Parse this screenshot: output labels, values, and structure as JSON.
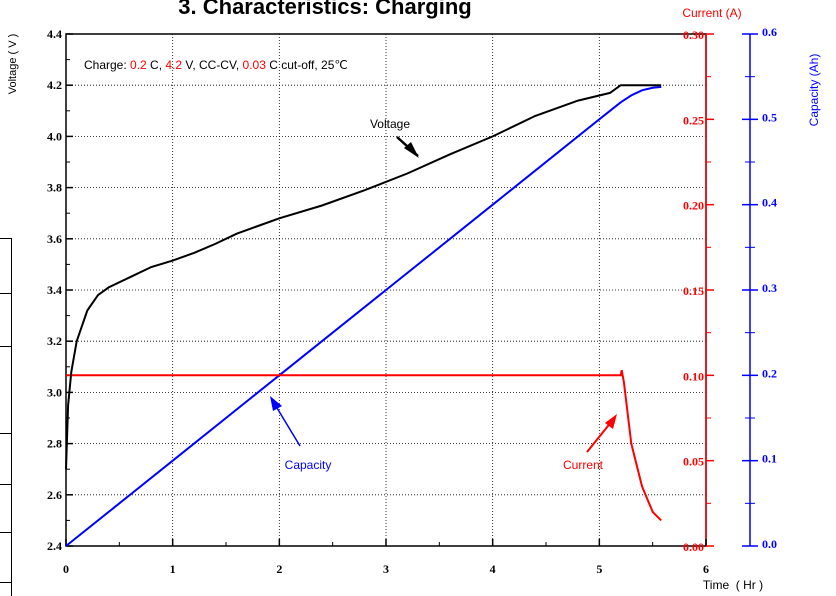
{
  "chart_data": {
    "type": "line",
    "title": "3. Characteristics: Charging",
    "annotation": {
      "prefix": "Charge: ",
      "rate": "0.2",
      "rate_unit": " C, ",
      "voltage": "4.2",
      "voltage_unit": " V, CC-CV, ",
      "cutoff": "0.03",
      "cutoff_unit": " C cut-off, 25℃"
    },
    "xlabel": "Time  ( Hr )",
    "y_left_label": "Voltage ( V )",
    "y_right_current_label": "Current (A)",
    "y_right_capacity_label": "Capacity (Ah)",
    "x_range": [
      0,
      6
    ],
    "y_left_range": [
      2.4,
      4.4
    ],
    "y_current_range": [
      0.0,
      0.3
    ],
    "y_capacity_range": [
      0.0,
      0.6
    ],
    "x_ticks": [
      "0",
      "1",
      "2",
      "3",
      "4",
      "5",
      "6"
    ],
    "y_left_ticks": [
      "2.4",
      "2.6",
      "2.8",
      "3.0",
      "3.2",
      "3.4",
      "3.6",
      "3.8",
      "4.0",
      "4.2",
      "4.4"
    ],
    "y_current_ticks": [
      "0.00",
      "0.05",
      "0.10",
      "0.15",
      "0.20",
      "0.25",
      "0.30"
    ],
    "y_capacity_ticks": [
      "0.0",
      "0.1",
      "0.2",
      "0.3",
      "0.4",
      "0.5",
      "0.6"
    ],
    "grid": true,
    "colors": {
      "voltage": "#000000",
      "current": "#ff0000",
      "capacity": "#0000ff"
    },
    "series": [
      {
        "name": "Voltage",
        "axis": "left",
        "x": [
          0.0,
          0.02,
          0.05,
          0.1,
          0.2,
          0.3,
          0.4,
          0.6,
          0.8,
          1.0,
          1.2,
          1.4,
          1.6,
          1.8,
          2.0,
          2.4,
          2.8,
          3.2,
          3.6,
          4.0,
          4.4,
          4.8,
          5.1,
          5.2,
          5.3,
          5.4,
          5.58
        ],
        "y": [
          2.7,
          2.95,
          3.08,
          3.2,
          3.32,
          3.38,
          3.41,
          3.45,
          3.49,
          3.515,
          3.545,
          3.58,
          3.62,
          3.65,
          3.68,
          3.73,
          3.79,
          3.855,
          3.93,
          4.0,
          4.08,
          4.14,
          4.17,
          4.2,
          4.2,
          4.2,
          4.2
        ]
      },
      {
        "name": "Current",
        "axis": "current",
        "x": [
          0.0,
          1.0,
          2.0,
          3.0,
          4.0,
          5.0,
          5.2,
          5.21,
          5.23,
          5.3,
          5.4,
          5.5,
          5.58
        ],
        "y": [
          0.1,
          0.1,
          0.1,
          0.1,
          0.1,
          0.1,
          0.1,
          0.103,
          0.096,
          0.06,
          0.035,
          0.02,
          0.015
        ]
      },
      {
        "name": "Capacity",
        "axis": "capacity",
        "x": [
          0.0,
          1.0,
          2.0,
          3.0,
          4.0,
          5.0,
          5.2,
          5.3,
          5.4,
          5.5,
          5.58
        ],
        "y": [
          0.0,
          0.1,
          0.2,
          0.3,
          0.4,
          0.5,
          0.52,
          0.528,
          0.534,
          0.537,
          0.538
        ]
      }
    ],
    "callouts": {
      "voltage": "Voltage",
      "capacity": "Capacity",
      "current": "Current"
    }
  }
}
